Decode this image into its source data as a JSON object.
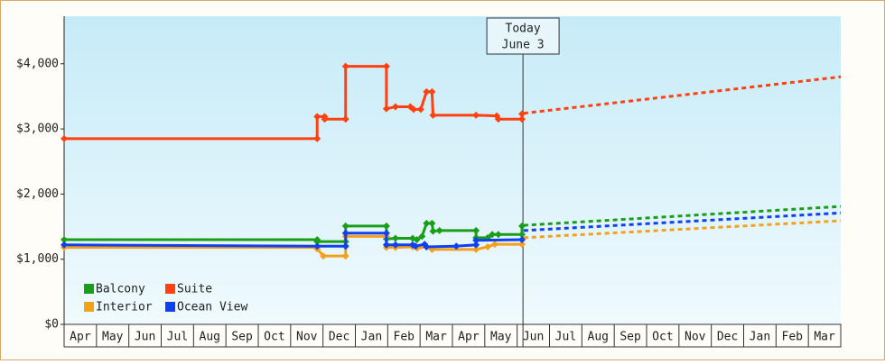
{
  "chart_data": {
    "type": "line",
    "categories": [
      "Apr",
      "May",
      "Jun",
      "Jul",
      "Aug",
      "Sep",
      "Oct",
      "Nov",
      "Dec",
      "Jan",
      "Feb",
      "Mar",
      "Apr",
      "May",
      "Jun",
      "Jul",
      "Aug",
      "Sep",
      "Oct",
      "Nov",
      "Dec",
      "Jan",
      "Feb",
      "Mar"
    ],
    "xlim": [
      0,
      24
    ],
    "ylim": [
      0,
      4730
    ],
    "yticks": [
      {
        "value": 0,
        "label": "$0"
      },
      {
        "value": 1000,
        "label": "$1,000"
      },
      {
        "value": 2000,
        "label": "$2,000"
      },
      {
        "value": 3000,
        "label": "$3,000"
      },
      {
        "value": 4000,
        "label": "$4,000"
      }
    ],
    "marker": {
      "x": 14.18,
      "label": [
        "Today",
        "June 3"
      ]
    },
    "legend": "lower left",
    "series": [
      {
        "name": "Balcony",
        "color": "#1a9e1a",
        "x": [
          0,
          7.82,
          7.82,
          8.7,
          8.7,
          9.96,
          9.96,
          10.24,
          10.77,
          10.9,
          11.06,
          11.2,
          11.37,
          11.4,
          11.6,
          12.73,
          12.73,
          13.09,
          13.23,
          13.42,
          14.15,
          14.15
        ],
        "values": [
          1300,
          1300,
          1270,
          1270,
          1510,
          1510,
          1310,
          1320,
          1320,
          1300,
          1350,
          1550,
          1550,
          1430,
          1440,
          1440,
          1330,
          1330,
          1380,
          1380,
          1380,
          1510
        ],
        "forecast_x": [
          14.2,
          24
        ],
        "forecast_values": [
          1520,
          1810
        ]
      },
      {
        "name": "Suite",
        "color": "#ff4010",
        "x": [
          0,
          7.82,
          7.82,
          8.05,
          8.05,
          8.7,
          8.7,
          9.96,
          9.96,
          10.24,
          10.7,
          10.8,
          11.02,
          11.2,
          11.37,
          11.4,
          12.73,
          13.37,
          13.42,
          14.15,
          14.15
        ],
        "values": [
          2850,
          2850,
          3190,
          3190,
          3150,
          3150,
          3960,
          3960,
          3310,
          3340,
          3340,
          3300,
          3300,
          3570,
          3570,
          3210,
          3210,
          3200,
          3150,
          3150,
          3230
        ],
        "forecast_x": [
          14.2,
          24
        ],
        "forecast_values": [
          3240,
          3800
        ]
      },
      {
        "name": "Interior",
        "color": "#f5a01a",
        "x": [
          0,
          7.82,
          7.82,
          8.01,
          8.7,
          8.7,
          9.96,
          9.96,
          10.24,
          10.77,
          10.91,
          11.2,
          11.37,
          12.73,
          13.09,
          13.31,
          14.15
        ],
        "values": [
          1180,
          1180,
          1160,
          1050,
          1050,
          1350,
          1350,
          1180,
          1180,
          1190,
          1170,
          1190,
          1150,
          1150,
          1190,
          1230,
          1230
        ],
        "forecast_x": [
          14.2,
          24
        ],
        "forecast_values": [
          1330,
          1590
        ]
      },
      {
        "name": "Ocean View",
        "color": "#1040f0",
        "x": [
          0,
          7.82,
          8.7,
          8.7,
          9.96,
          9.96,
          10.24,
          10.77,
          10.86,
          11.14,
          11.2,
          12.12,
          12.73,
          12.73,
          14.15
        ],
        "values": [
          1220,
          1200,
          1200,
          1400,
          1400,
          1220,
          1220,
          1220,
          1200,
          1230,
          1190,
          1200,
          1220,
          1290,
          1300
        ],
        "forecast_x": [
          14.2,
          24
        ],
        "forecast_values": [
          1440,
          1710
        ]
      }
    ]
  }
}
